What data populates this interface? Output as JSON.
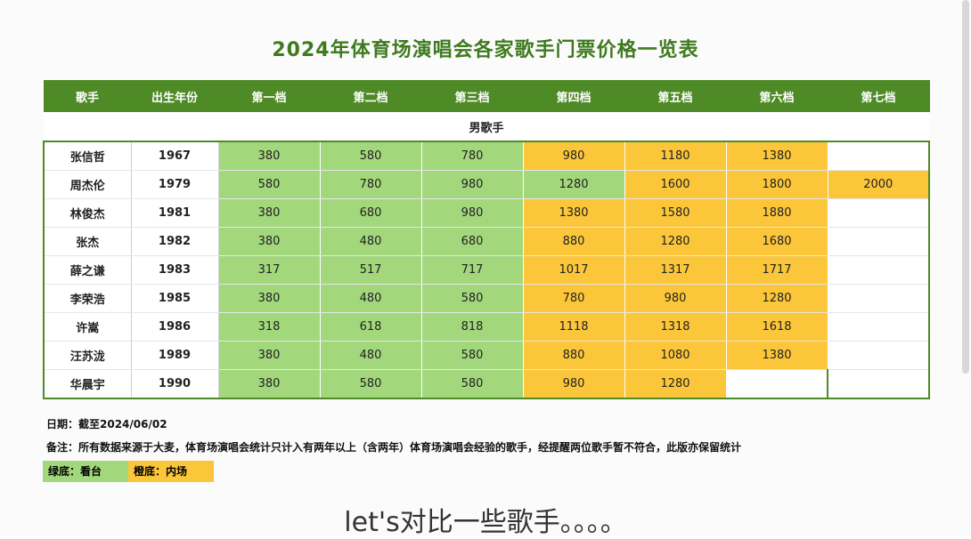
{
  "title": "2024年体育场演唱会各家歌手门票价格一览表",
  "headers": [
    "歌手",
    "出生年份",
    "第一档",
    "第二档",
    "第三档",
    "第四档",
    "第五档",
    "第六档",
    "第七档"
  ],
  "section_label": "男歌手",
  "colors": {
    "header_green": "#4e8a25",
    "light_green": "#a3d77c",
    "orange": "#fcc63a"
  },
  "rows": [
    {
      "name": "张信哲",
      "year": "1967",
      "prices": [
        "380",
        "580",
        "780",
        "980",
        "1180",
        "1380",
        ""
      ],
      "colors": [
        "g",
        "g",
        "g",
        "o",
        "o",
        "o",
        "e"
      ]
    },
    {
      "name": "周杰伦",
      "year": "1979",
      "prices": [
        "580",
        "780",
        "980",
        "1280",
        "1600",
        "1800",
        "2000"
      ],
      "colors": [
        "g",
        "g",
        "g",
        "g",
        "o",
        "o",
        "o"
      ]
    },
    {
      "name": "林俊杰",
      "year": "1981",
      "prices": [
        "380",
        "680",
        "980",
        "1380",
        "1580",
        "1880",
        ""
      ],
      "colors": [
        "g",
        "g",
        "g",
        "o",
        "o",
        "o",
        "e"
      ]
    },
    {
      "name": "张杰",
      "year": "1982",
      "prices": [
        "380",
        "480",
        "680",
        "880",
        "1280",
        "1680",
        ""
      ],
      "colors": [
        "g",
        "g",
        "g",
        "o",
        "o",
        "o",
        "e"
      ]
    },
    {
      "name": "薛之谦",
      "year": "1983",
      "prices": [
        "317",
        "517",
        "717",
        "1017",
        "1317",
        "1717",
        ""
      ],
      "colors": [
        "g",
        "g",
        "g",
        "o",
        "o",
        "o",
        "e"
      ]
    },
    {
      "name": "李荣浩",
      "year": "1985",
      "prices": [
        "380",
        "480",
        "580",
        "780",
        "980",
        "1280",
        ""
      ],
      "colors": [
        "g",
        "g",
        "g",
        "o",
        "o",
        "o",
        "e"
      ]
    },
    {
      "name": "许嵩",
      "year": "1986",
      "prices": [
        "318",
        "618",
        "818",
        "1118",
        "1318",
        "1618",
        ""
      ],
      "colors": [
        "g",
        "g",
        "g",
        "o",
        "o",
        "o",
        "e"
      ]
    },
    {
      "name": "汪苏泷",
      "year": "1989",
      "prices": [
        "380",
        "480",
        "580",
        "880",
        "1080",
        "1380",
        ""
      ],
      "colors": [
        "g",
        "g",
        "g",
        "o",
        "o",
        "o",
        "e"
      ]
    },
    {
      "name": "华晨宇",
      "year": "1990",
      "prices": [
        "380",
        "580",
        "580",
        "980",
        "1280",
        "",
        ""
      ],
      "colors": [
        "g",
        "g",
        "g",
        "o",
        "o",
        "e",
        "e"
      ]
    }
  ],
  "notes": {
    "date": "日期：截至2024/06/02",
    "remark": "备注：所有数据来源于大麦，体育场演唱会统计只计入有两年以上（含两年）体育场演唱会经验的歌手，经提醒两位歌手暂不符合，此版亦保留统计"
  },
  "legend": {
    "green": "绿底：看台",
    "orange": "橙底：内场"
  },
  "caption": "let's对比一些歌手。。。。"
}
